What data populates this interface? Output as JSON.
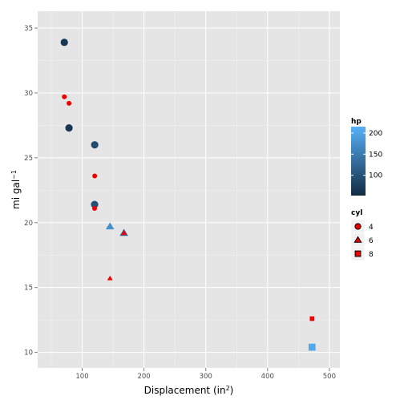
{
  "chart_data": {
    "type": "scatter",
    "title": "",
    "xlabel": "Displacement (in",
    "xlabel_sup": "2",
    "xlabel_close": ")",
    "ylabel": "mi gal",
    "ylabel_sup": "−1",
    "xlim": [
      28,
      517
    ],
    "ylim": [
      8.8,
      36.3
    ],
    "x_ticks": [
      100,
      200,
      300,
      400,
      500
    ],
    "y_ticks": [
      10,
      15,
      20,
      25,
      30,
      35
    ],
    "grid": true,
    "legend_position": "right",
    "layers": [
      {
        "name": "hp",
        "color_mode": "gradient",
        "points": [
          {
            "x": 71.1,
            "y": 33.9,
            "hp": 65,
            "shape": "circle"
          },
          {
            "x": 78.7,
            "y": 27.3,
            "hp": 66,
            "shape": "circle"
          },
          {
            "x": 120.3,
            "y": 26.0,
            "hp": 91,
            "shape": "circle"
          },
          {
            "x": 120.1,
            "y": 21.4,
            "hp": 97,
            "shape": "circle"
          },
          {
            "x": 145.0,
            "y": 19.7,
            "hp": 175,
            "shape": "triangle"
          },
          {
            "x": 167.6,
            "y": 19.2,
            "hp": 123,
            "shape": "triangle"
          },
          {
            "x": 472.0,
            "y": 10.4,
            "hp": 205,
            "shape": "square"
          }
        ]
      },
      {
        "name": "cyl",
        "color": "#ee0000",
        "points": [
          {
            "x": 71.1,
            "y": 29.7,
            "cyl": "4",
            "shape": "circle"
          },
          {
            "x": 78.7,
            "y": 29.2,
            "cyl": "4",
            "shape": "circle"
          },
          {
            "x": 120.3,
            "y": 23.6,
            "cyl": "4",
            "shape": "circle"
          },
          {
            "x": 120.1,
            "y": 21.1,
            "cyl": "4",
            "shape": "circle"
          },
          {
            "x": 167.6,
            "y": 19.2,
            "cyl": "6",
            "shape": "triangle"
          },
          {
            "x": 145.0,
            "y": 15.7,
            "cyl": "6",
            "shape": "triangle"
          },
          {
            "x": 472.0,
            "y": 12.6,
            "cyl": "8",
            "shape": "square"
          }
        ]
      }
    ],
    "legend_hp": {
      "title": "hp",
      "range": [
        52,
        215
      ],
      "breaks": [
        100,
        150,
        200
      ],
      "low_color": "#132b43",
      "high_color": "#56b1f7"
    },
    "legend_cyl": {
      "title": "cyl",
      "entries": [
        {
          "label": "4",
          "shape": "circle"
        },
        {
          "label": "6",
          "shape": "triangle"
        },
        {
          "label": "8",
          "shape": "square"
        }
      ]
    },
    "colors": {
      "panel_bg": "#e5e5e5",
      "grid_major": "#ffffff",
      "grid_minor": "#f2f2f2",
      "cyl_fill": "#ee0000"
    }
  }
}
